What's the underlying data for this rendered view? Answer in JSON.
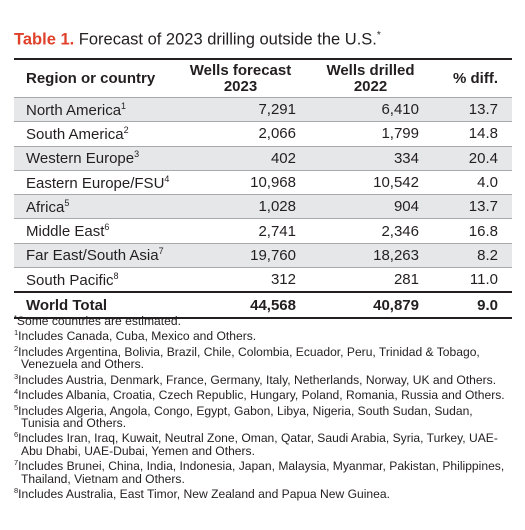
{
  "title": {
    "label": "Table 1.",
    "text": " Forecast of 2023 drilling outside the U.S.",
    "marker": "*"
  },
  "headers": {
    "region": "Region or country",
    "forecast_1": "Wells forecast",
    "forecast_2": "2023",
    "drilled_1": "Wells drilled",
    "drilled_2": "2022",
    "pct": "% diff."
  },
  "rows": [
    {
      "region": "North America",
      "sup": "1",
      "forecast": "7,291",
      "drilled": "6,410",
      "pct": "13.7"
    },
    {
      "region": "South America",
      "sup": "2",
      "forecast": "2,066",
      "drilled": "1,799",
      "pct": "14.8"
    },
    {
      "region": "Western Europe",
      "sup": "3",
      "forecast": "402",
      "drilled": "334",
      "pct": "20.4"
    },
    {
      "region": "Eastern Europe/FSU",
      "sup": "4",
      "forecast": "10,968",
      "drilled": "10,542",
      "pct": "4.0"
    },
    {
      "region": "Africa",
      "sup": "5",
      "forecast": "1,028",
      "drilled": "904",
      "pct": "13.7"
    },
    {
      "region": "Middle East",
      "sup": "6",
      "forecast": "2,741",
      "drilled": "2,346",
      "pct": "16.8"
    },
    {
      "region": "Far East/South Asia",
      "sup": "7",
      "forecast": "19,760",
      "drilled": "18,263",
      "pct": "8.2"
    },
    {
      "region": "South Pacific",
      "sup": "8",
      "forecast": "312",
      "drilled": "281",
      "pct": "11.0"
    }
  ],
  "total": {
    "region": "World Total",
    "forecast": "44,568",
    "drilled": "40,879",
    "pct": "9.0"
  },
  "footnotes": [
    {
      "mark": "*",
      "text": "Some countries are estimated."
    },
    {
      "mark": "1",
      "text": "Includes Canada, Cuba, Mexico and Others."
    },
    {
      "mark": "2",
      "text": "Includes Argentina, Bolivia, Brazil, Chile, Colombia, Ecuador, Peru, Trinidad & Tobago, Venezuela and Others."
    },
    {
      "mark": "3",
      "text": "Includes Austria, Denmark, France, Germany, Italy, Netherlands, Norway, UK and Others."
    },
    {
      "mark": "4",
      "text": "Includes Albania, Croatia, Czech Republic, Hungary, Poland, Romania, Russia and Others."
    },
    {
      "mark": "5",
      "text": "Includes Algeria, Angola, Congo, Egypt, Gabon, Libya, Nigeria, South Sudan, Sudan, Tunisia and Others."
    },
    {
      "mark": "6",
      "text": "Includes Iran, Iraq, Kuwait, Neutral Zone, Oman, Qatar, Saudi Arabia, Syria, Turkey, UAE-Abu Dhabi, UAE-Dubai, Yemen and Others."
    },
    {
      "mark": "7",
      "text": "Includes Brunei, China, India, Indonesia, Japan, Malaysia, Myanmar, Pakistan, Philippines, Thailand, Vietnam and Others."
    },
    {
      "mark": "8",
      "text": "Includes Australia, East Timor, New Zealand and Papua New Guinea."
    }
  ],
  "colors": {
    "title_label": "#e0412b",
    "row_shade": "#e6e7e8",
    "text": "#231f20"
  }
}
